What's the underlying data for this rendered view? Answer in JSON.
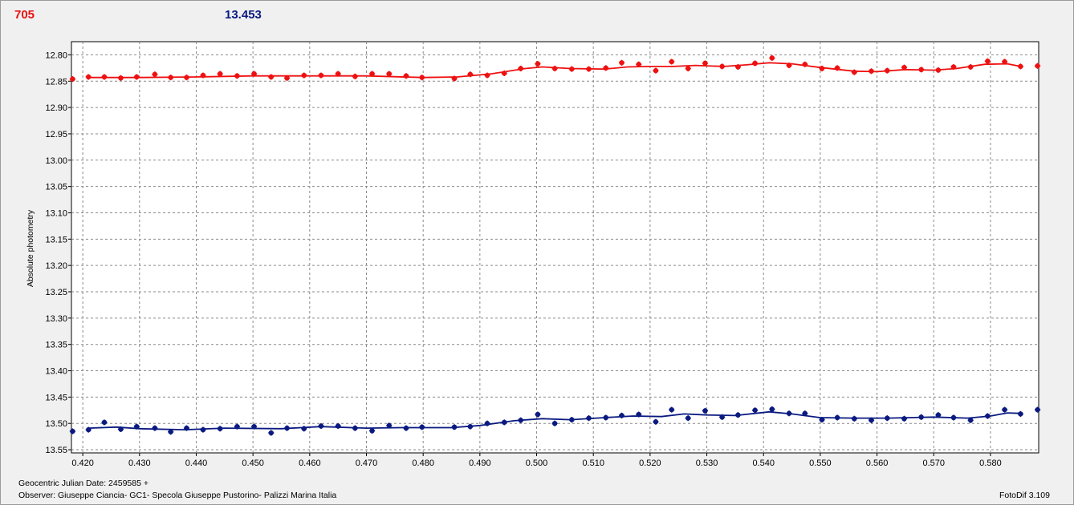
{
  "header": {
    "left_value": "705",
    "right_value": "13.453"
  },
  "footer": {
    "date_line": "Geocentric Julian Date: 2459585 +",
    "observer_line": "Observer: Giuseppe Ciancia- GC1- Specola Giuseppe Pustorino- Palizzi Marina Italia",
    "software": "FotoDif 3.109"
  },
  "chart_data": {
    "type": "scatter",
    "ylabel": "Absolute photometry",
    "xlim": [
      0.418,
      0.5885
    ],
    "ylim": [
      12.775,
      13.556
    ],
    "y_inverted": true,
    "grid": true,
    "x_ticks": [
      0.42,
      0.43,
      0.44,
      0.45,
      0.46,
      0.47,
      0.48,
      0.49,
      0.5,
      0.51,
      0.52,
      0.53,
      0.54,
      0.55,
      0.56,
      0.57,
      0.58
    ],
    "x_tick_labels": [
      "0.420",
      "0.430",
      "0.440",
      "0.450",
      "0.460",
      "0.470",
      "0.480",
      "0.490",
      "0.500",
      "0.510",
      "0.520",
      "0.530",
      "0.540",
      "0.550",
      "0.560",
      "0.570",
      "0.580"
    ],
    "y_ticks": [
      12.8,
      12.85,
      12.9,
      12.95,
      13.0,
      13.05,
      13.1,
      13.15,
      13.2,
      13.25,
      13.3,
      13.35,
      13.4,
      13.45,
      13.5,
      13.55
    ],
    "y_tick_labels": [
      "12.80",
      "12.85",
      "12.90",
      "12.95",
      "13.00",
      "13.05",
      "13.10",
      "13.15",
      "13.20",
      "13.25",
      "13.30",
      "13.35",
      "13.40",
      "13.45",
      "13.50",
      "13.55"
    ],
    "colors": {
      "red_series": "#ee1111",
      "blue_series": "#0a1a80",
      "grid": "#8a8a8a"
    },
    "series": [
      {
        "color": "#ee1111",
        "points": [
          [
            0.4182,
            12.846
          ],
          [
            0.421,
            12.842
          ],
          [
            0.4238,
            12.842
          ],
          [
            0.4267,
            12.844
          ],
          [
            0.4295,
            12.842
          ],
          [
            0.4327,
            12.837
          ],
          [
            0.4355,
            12.843
          ],
          [
            0.4383,
            12.843
          ],
          [
            0.4412,
            12.839
          ],
          [
            0.4442,
            12.836
          ],
          [
            0.4472,
            12.84
          ],
          [
            0.4502,
            12.836
          ],
          [
            0.4532,
            12.842
          ],
          [
            0.456,
            12.844
          ],
          [
            0.459,
            12.839
          ],
          [
            0.462,
            12.839
          ],
          [
            0.465,
            12.836
          ],
          [
            0.468,
            12.841
          ],
          [
            0.471,
            12.836
          ],
          [
            0.474,
            12.836
          ],
          [
            0.477,
            12.84
          ],
          [
            0.4798,
            12.843
          ],
          [
            0.4855,
            12.845
          ],
          [
            0.4883,
            12.837
          ],
          [
            0.4913,
            12.839
          ],
          [
            0.4943,
            12.835
          ],
          [
            0.4972,
            12.826
          ],
          [
            0.5002,
            12.817
          ],
          [
            0.5032,
            12.826
          ],
          [
            0.5062,
            12.827
          ],
          [
            0.5092,
            12.827
          ],
          [
            0.5122,
            12.825
          ],
          [
            0.515,
            12.815
          ],
          [
            0.518,
            12.818
          ],
          [
            0.521,
            12.83
          ],
          [
            0.5238,
            12.813
          ],
          [
            0.5267,
            12.826
          ],
          [
            0.5297,
            12.816
          ],
          [
            0.5327,
            12.822
          ],
          [
            0.5355,
            12.823
          ],
          [
            0.5385,
            12.816
          ],
          [
            0.5415,
            12.806
          ],
          [
            0.5445,
            12.82
          ],
          [
            0.5473,
            12.818
          ],
          [
            0.5503,
            12.826
          ],
          [
            0.553,
            12.825
          ],
          [
            0.556,
            12.833
          ],
          [
            0.559,
            12.831
          ],
          [
            0.5618,
            12.83
          ],
          [
            0.5648,
            12.824
          ],
          [
            0.5678,
            12.828
          ],
          [
            0.5708,
            12.829
          ],
          [
            0.5735,
            12.823
          ],
          [
            0.5765,
            12.823
          ],
          [
            0.5795,
            12.812
          ],
          [
            0.5825,
            12.813
          ],
          [
            0.5853,
            12.822
          ],
          [
            0.5883,
            12.821
          ]
        ],
        "trend": [
          [
            0.421,
            12.843
          ],
          [
            0.43,
            12.843
          ],
          [
            0.44,
            12.842
          ],
          [
            0.45,
            12.84
          ],
          [
            0.46,
            12.84
          ],
          [
            0.47,
            12.84
          ],
          [
            0.48,
            12.843
          ],
          [
            0.486,
            12.842
          ],
          [
            0.492,
            12.836
          ],
          [
            0.498,
            12.826
          ],
          [
            0.501,
            12.823
          ],
          [
            0.506,
            12.826
          ],
          [
            0.512,
            12.827
          ],
          [
            0.516,
            12.823
          ],
          [
            0.52,
            12.822
          ],
          [
            0.524,
            12.822
          ],
          [
            0.528,
            12.82
          ],
          [
            0.533,
            12.822
          ],
          [
            0.537,
            12.819
          ],
          [
            0.541,
            12.815
          ],
          [
            0.545,
            12.817
          ],
          [
            0.55,
            12.824
          ],
          [
            0.556,
            12.831
          ],
          [
            0.56,
            12.832
          ],
          [
            0.565,
            12.828
          ],
          [
            0.57,
            12.829
          ],
          [
            0.574,
            12.826
          ],
          [
            0.579,
            12.818
          ],
          [
            0.583,
            12.817
          ],
          [
            0.5853,
            12.822
          ]
        ]
      },
      {
        "color": "#0a1a80",
        "points": [
          [
            0.4182,
            13.515
          ],
          [
            0.421,
            13.512
          ],
          [
            0.4238,
            13.498
          ],
          [
            0.4267,
            13.511
          ],
          [
            0.4295,
            13.506
          ],
          [
            0.4327,
            13.509
          ],
          [
            0.4355,
            13.516
          ],
          [
            0.4383,
            13.509
          ],
          [
            0.4412,
            13.512
          ],
          [
            0.4442,
            13.51
          ],
          [
            0.4472,
            13.506
          ],
          [
            0.4502,
            13.506
          ],
          [
            0.4532,
            13.518
          ],
          [
            0.456,
            13.509
          ],
          [
            0.459,
            13.51
          ],
          [
            0.462,
            13.505
          ],
          [
            0.465,
            13.505
          ],
          [
            0.468,
            13.509
          ],
          [
            0.471,
            13.514
          ],
          [
            0.474,
            13.504
          ],
          [
            0.477,
            13.509
          ],
          [
            0.4798,
            13.507
          ],
          [
            0.4855,
            13.507
          ],
          [
            0.4883,
            13.506
          ],
          [
            0.4913,
            13.5
          ],
          [
            0.4943,
            13.498
          ],
          [
            0.4972,
            13.494
          ],
          [
            0.5002,
            13.483
          ],
          [
            0.5032,
            13.5
          ],
          [
            0.5062,
            13.493
          ],
          [
            0.5092,
            13.49
          ],
          [
            0.5122,
            13.489
          ],
          [
            0.515,
            13.485
          ],
          [
            0.518,
            13.483
          ],
          [
            0.521,
            13.497
          ],
          [
            0.5238,
            13.474
          ],
          [
            0.5267,
            13.49
          ],
          [
            0.5297,
            13.476
          ],
          [
            0.5327,
            13.488
          ],
          [
            0.5355,
            13.484
          ],
          [
            0.5385,
            13.475
          ],
          [
            0.5415,
            13.473
          ],
          [
            0.5445,
            13.481
          ],
          [
            0.5473,
            13.481
          ],
          [
            0.5503,
            13.493
          ],
          [
            0.553,
            13.489
          ],
          [
            0.556,
            13.491
          ],
          [
            0.559,
            13.494
          ],
          [
            0.5618,
            13.49
          ],
          [
            0.5648,
            13.491
          ],
          [
            0.5678,
            13.488
          ],
          [
            0.5708,
            13.484
          ],
          [
            0.5735,
            13.489
          ],
          [
            0.5765,
            13.494
          ],
          [
            0.5795,
            13.486
          ],
          [
            0.5825,
            13.474
          ],
          [
            0.5853,
            13.482
          ],
          [
            0.5883,
            13.474
          ]
        ],
        "trend": [
          [
            0.421,
            13.509
          ],
          [
            0.426,
            13.507
          ],
          [
            0.43,
            13.51
          ],
          [
            0.438,
            13.512
          ],
          [
            0.445,
            13.509
          ],
          [
            0.455,
            13.51
          ],
          [
            0.462,
            13.506
          ],
          [
            0.47,
            13.509
          ],
          [
            0.476,
            13.508
          ],
          [
            0.485,
            13.508
          ],
          [
            0.49,
            13.504
          ],
          [
            0.496,
            13.495
          ],
          [
            0.501,
            13.491
          ],
          [
            0.506,
            13.493
          ],
          [
            0.512,
            13.489
          ],
          [
            0.517,
            13.486
          ],
          [
            0.522,
            13.487
          ],
          [
            0.526,
            13.482
          ],
          [
            0.53,
            13.484
          ],
          [
            0.535,
            13.485
          ],
          [
            0.541,
            13.478
          ],
          [
            0.545,
            13.482
          ],
          [
            0.55,
            13.489
          ],
          [
            0.556,
            13.49
          ],
          [
            0.562,
            13.49
          ],
          [
            0.57,
            13.488
          ],
          [
            0.576,
            13.49
          ],
          [
            0.58,
            13.486
          ],
          [
            0.583,
            13.48
          ],
          [
            0.5853,
            13.481
          ]
        ]
      }
    ]
  }
}
